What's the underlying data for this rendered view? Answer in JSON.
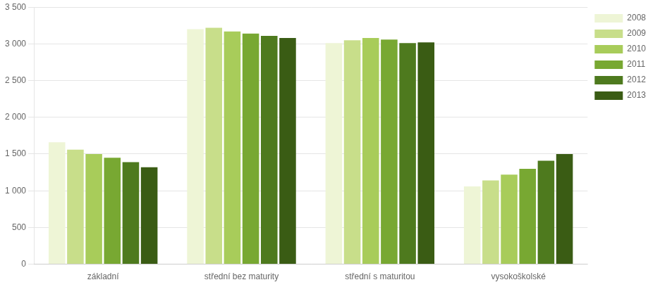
{
  "chart_data": {
    "type": "bar",
    "categories": [
      "základní",
      "střední bez maturity",
      "střední s maturitou",
      "vysokoškolské"
    ],
    "series": [
      {
        "name": "2008",
        "color": "#eef5d6",
        "values": [
          1660,
          3200,
          3010,
          1060
        ]
      },
      {
        "name": "2009",
        "color": "#c8de8a",
        "values": [
          1560,
          3220,
          3050,
          1140
        ]
      },
      {
        "name": "2010",
        "color": "#a8cc5a",
        "values": [
          1500,
          3170,
          3080,
          1220
        ]
      },
      {
        "name": "2011",
        "color": "#78a832",
        "values": [
          1450,
          3140,
          3060,
          1300
        ]
      },
      {
        "name": "2012",
        "color": "#4e7a1e",
        "values": [
          1390,
          3110,
          3010,
          1410
        ]
      },
      {
        "name": "2013",
        "color": "#3a5c14",
        "values": [
          1320,
          3080,
          3020,
          1500
        ]
      }
    ],
    "ylim": [
      0,
      3500
    ],
    "yticks": [
      0,
      500,
      {
        "value": 1000,
        "label": "1 000"
      },
      {
        "value": 1500,
        "label": "1 500"
      },
      {
        "value": 2000,
        "label": "2 000"
      },
      {
        "value": 2500,
        "label": "2 500"
      },
      {
        "value": 3000,
        "label": "3 000"
      },
      {
        "value": 3500,
        "label": "3 500"
      }
    ],
    "grid": true,
    "legend": "right"
  }
}
